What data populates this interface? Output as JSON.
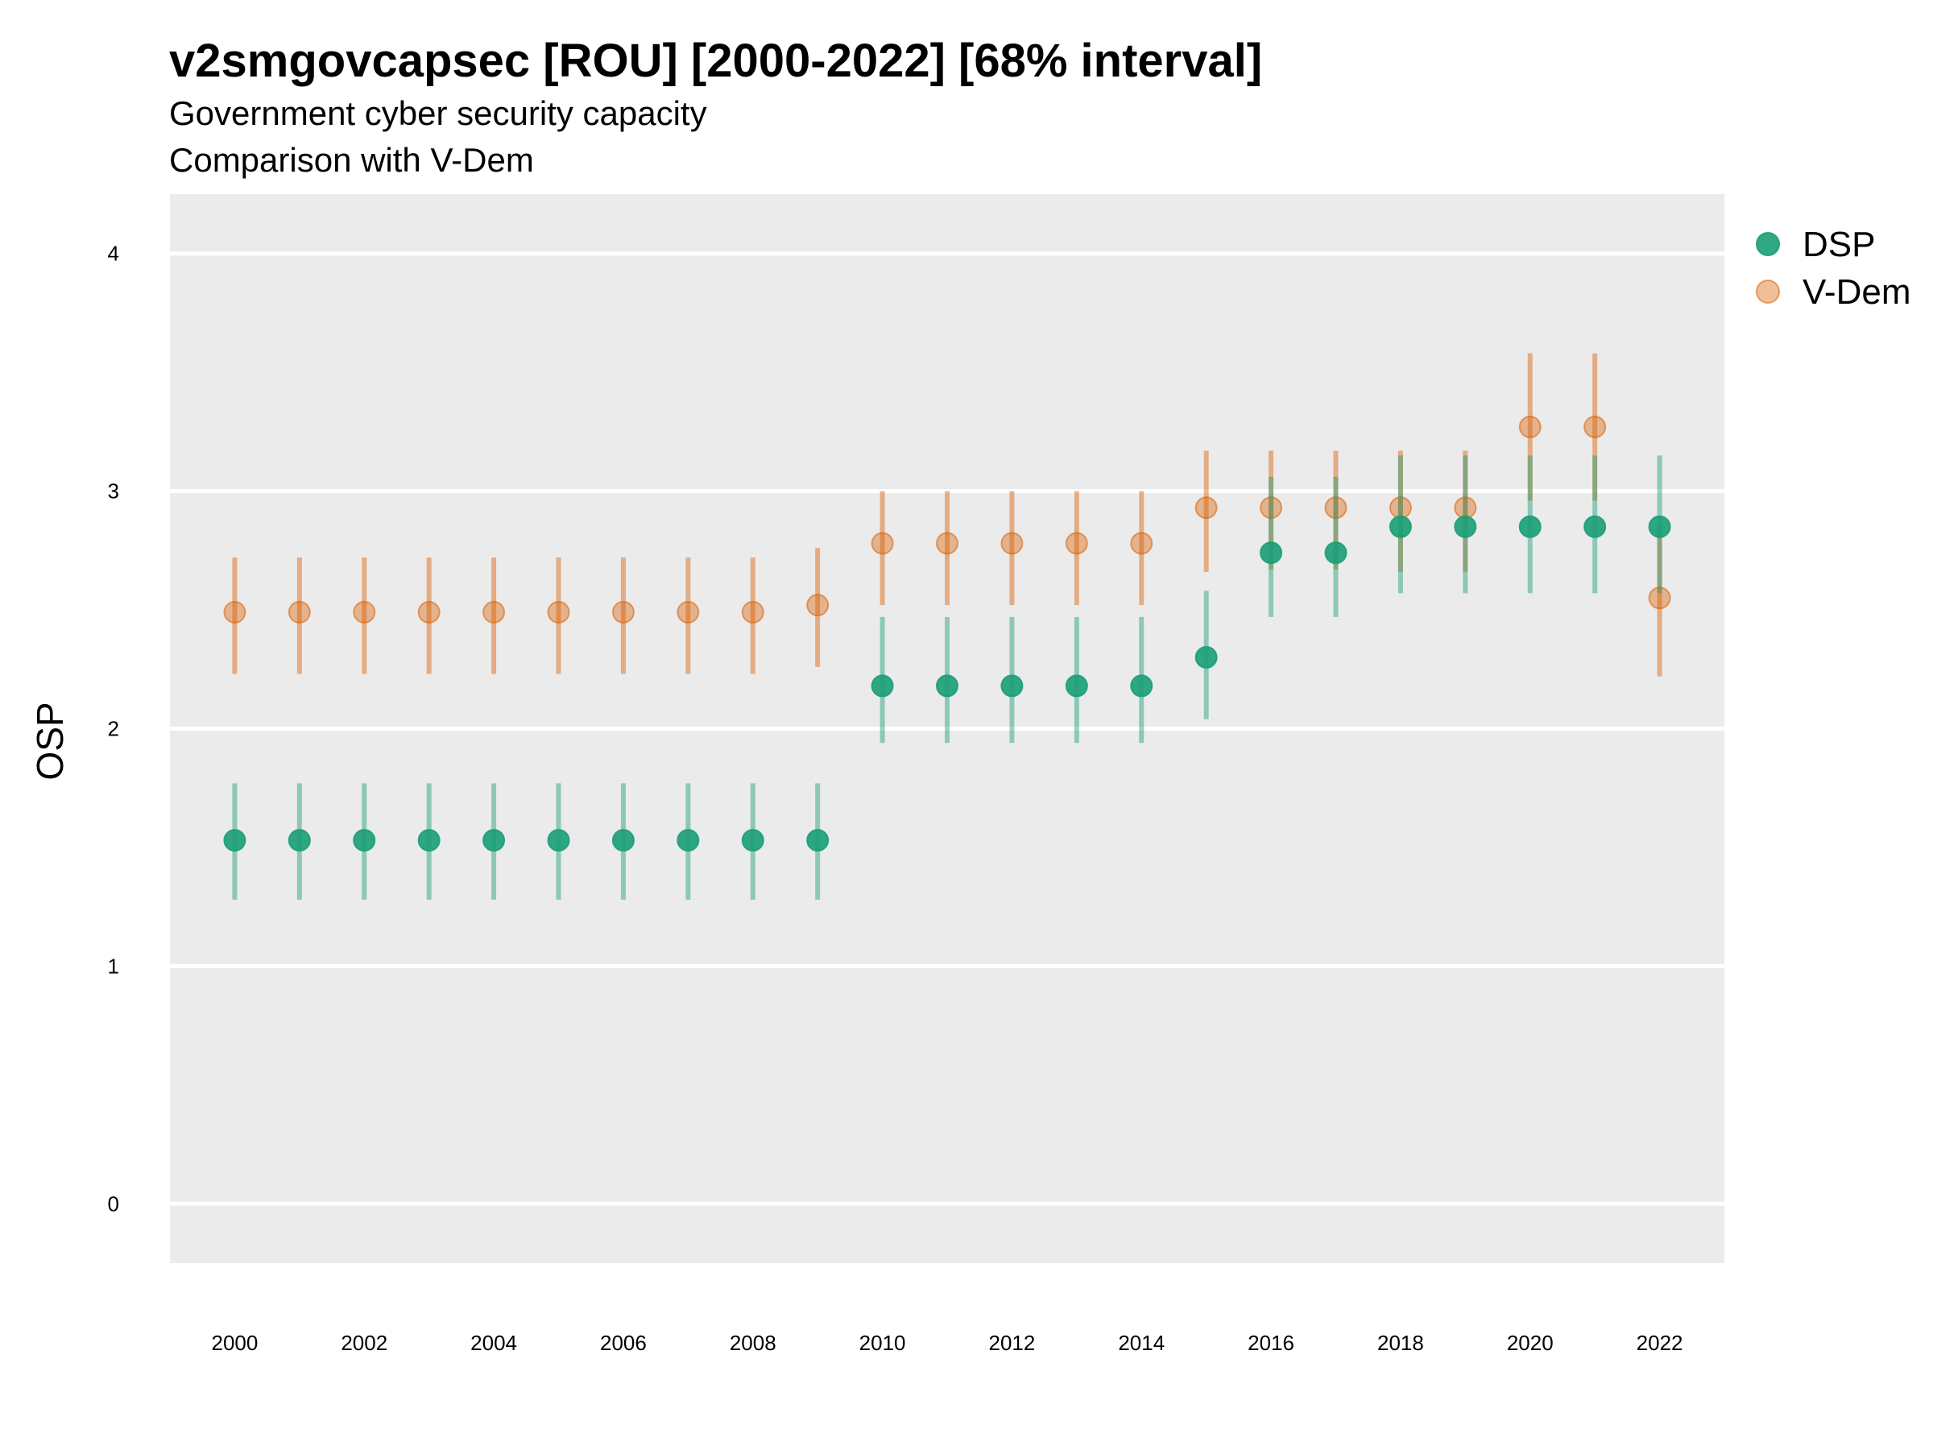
{
  "chart_data": {
    "type": "scatter",
    "title": "v2smgovcapsec [ROU] [2000-2022] [68% interval]",
    "subtitle": "Government cyber security capacity",
    "subtitle2": "Comparison with V-Dem",
    "ylabel": "OSP",
    "xlabel": "",
    "ylim": [
      -0.25,
      4.25
    ],
    "xlim": [
      1999.0,
      2023.0
    ],
    "yticks": [
      0,
      1,
      2,
      3,
      4
    ],
    "xticks": [
      2000,
      2002,
      2004,
      2006,
      2008,
      2010,
      2012,
      2014,
      2016,
      2018,
      2020,
      2022
    ],
    "grid": true,
    "legend_position": "right",
    "series": [
      {
        "name": "DSP",
        "color": "#1b9e77",
        "x": [
          2000,
          2001,
          2002,
          2003,
          2004,
          2005,
          2006,
          2007,
          2008,
          2009,
          2010,
          2011,
          2012,
          2013,
          2014,
          2015,
          2016,
          2017,
          2018,
          2019,
          2020,
          2021,
          2022
        ],
        "y": [
          1.53,
          1.53,
          1.53,
          1.53,
          1.53,
          1.53,
          1.53,
          1.53,
          1.53,
          1.53,
          2.18,
          2.18,
          2.18,
          2.18,
          2.18,
          2.3,
          2.74,
          2.74,
          2.85,
          2.85,
          2.85,
          2.85,
          2.85
        ],
        "lower": [
          1.28,
          1.28,
          1.28,
          1.28,
          1.28,
          1.28,
          1.28,
          1.28,
          1.28,
          1.28,
          1.94,
          1.94,
          1.94,
          1.94,
          1.94,
          2.04,
          2.47,
          2.47,
          2.57,
          2.57,
          2.57,
          2.57,
          2.57
        ],
        "upper": [
          1.77,
          1.77,
          1.77,
          1.77,
          1.77,
          1.77,
          1.77,
          1.77,
          1.77,
          1.77,
          2.47,
          2.47,
          2.47,
          2.47,
          2.47,
          2.58,
          3.06,
          3.06,
          3.15,
          3.15,
          3.15,
          3.15,
          3.15
        ]
      },
      {
        "name": "V-Dem",
        "color": "#d95f02",
        "x": [
          2000,
          2001,
          2002,
          2003,
          2004,
          2005,
          2006,
          2007,
          2008,
          2009,
          2010,
          2011,
          2012,
          2013,
          2014,
          2015,
          2016,
          2017,
          2018,
          2019,
          2020,
          2021,
          2022
        ],
        "y": [
          2.49,
          2.49,
          2.49,
          2.49,
          2.49,
          2.49,
          2.49,
          2.49,
          2.49,
          2.52,
          2.78,
          2.78,
          2.78,
          2.78,
          2.78,
          2.93,
          2.93,
          2.93,
          2.93,
          2.93,
          3.27,
          3.27,
          2.55
        ],
        "lower": [
          2.23,
          2.23,
          2.23,
          2.23,
          2.23,
          2.23,
          2.23,
          2.23,
          2.23,
          2.26,
          2.52,
          2.52,
          2.52,
          2.52,
          2.52,
          2.66,
          2.67,
          2.67,
          2.66,
          2.66,
          2.96,
          2.96,
          2.22
        ],
        "upper": [
          2.72,
          2.72,
          2.72,
          2.72,
          2.72,
          2.72,
          2.72,
          2.72,
          2.72,
          2.76,
          3.0,
          3.0,
          3.0,
          3.0,
          3.0,
          3.17,
          3.17,
          3.17,
          3.17,
          3.17,
          3.58,
          3.58,
          2.86
        ]
      }
    ]
  }
}
